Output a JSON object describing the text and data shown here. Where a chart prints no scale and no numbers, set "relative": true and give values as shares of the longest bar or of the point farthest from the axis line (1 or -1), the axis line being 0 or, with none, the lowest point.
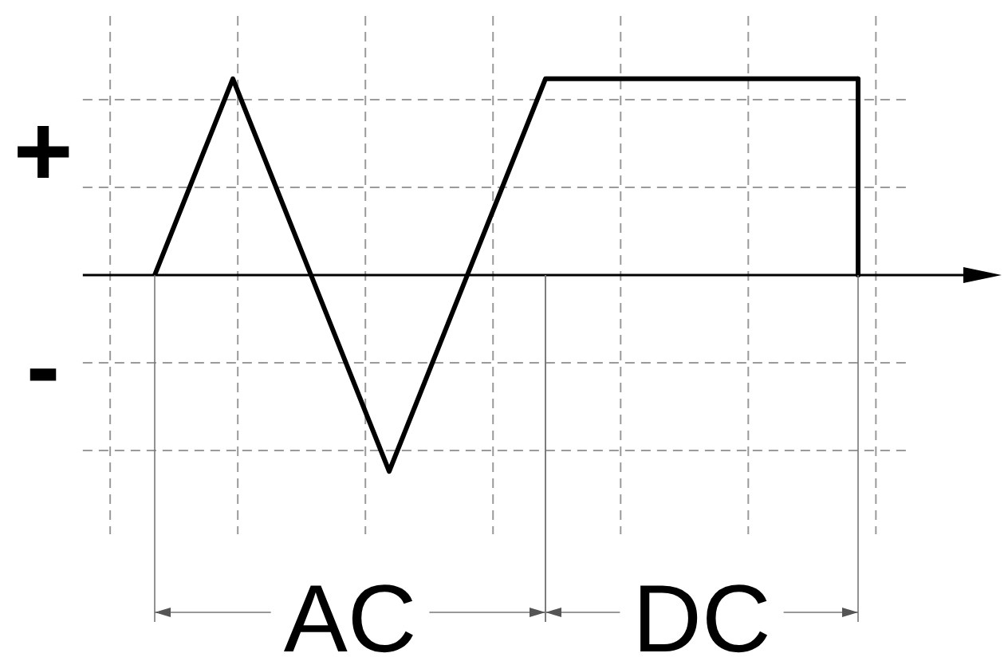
{
  "chart_data": {
    "type": "line",
    "relative": true,
    "tick_labels": false,
    "grid": true,
    "legend": false,
    "marker": "none",
    "line_style": "solid",
    "categories": [
      null,
      null,
      null,
      null,
      null,
      null,
      null,
      null,
      null,
      null
    ],
    "series": [
      {
        "color": "#000000",
        "values": [
          0,
          1,
          0,
          -1,
          0,
          1,
          1,
          1,
          1,
          1
        ]
      }
    ],
    "annotations": [
      "+",
      "-",
      "AC",
      "DC"
    ]
  }
}
